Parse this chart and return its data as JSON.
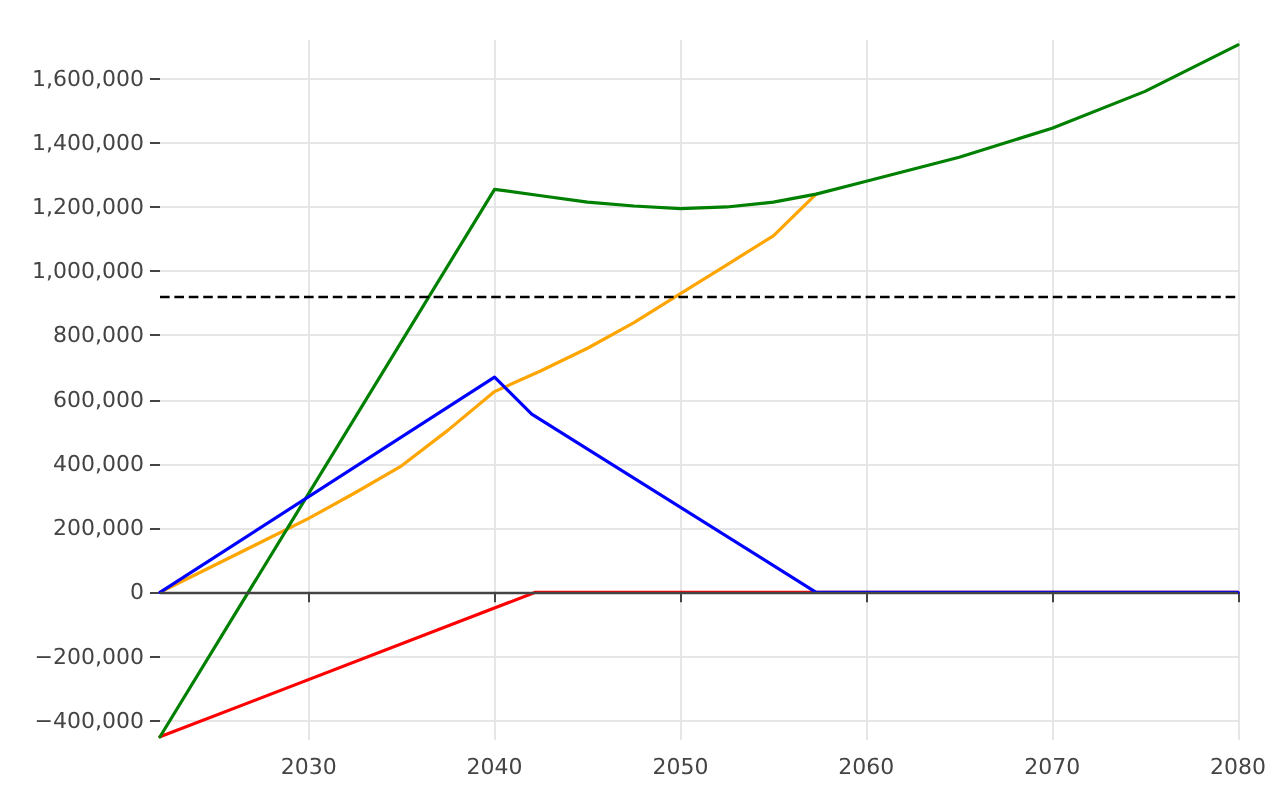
{
  "chart_data": {
    "type": "line",
    "xlim": [
      2022,
      2080
    ],
    "xticks": [
      2030,
      2040,
      2050,
      2060,
      2070,
      2080
    ],
    "ylim": [
      -460000,
      1720000
    ],
    "yticks": [
      {
        "value": -400000,
        "label": "−400,000"
      },
      {
        "value": -200000,
        "label": "−200,000"
      },
      0,
      {
        "value": 200000,
        "label": "200,000"
      },
      {
        "value": 400000,
        "label": "400,000"
      },
      {
        "value": 600000,
        "label": "600,000"
      },
      {
        "value": 800000,
        "label": "800,000"
      },
      {
        "value": 1000000,
        "label": "1,000,000"
      },
      {
        "value": 1200000,
        "label": "1,200,000"
      },
      {
        "value": 1400000,
        "label": "1,400,000"
      },
      {
        "value": 1600000,
        "label": "1,600,000"
      }
    ],
    "grid": true,
    "marker": "none",
    "line_style": "solid",
    "series": [
      {
        "color": "#ff0000",
        "x": [
          2022,
          2042.2,
          2080
        ],
        "values": [
          -450000,
          0,
          0
        ]
      },
      {
        "color": "#ffa500",
        "x": [
          2022,
          2030,
          2032.5,
          2035,
          2037.5,
          2040,
          2042.5,
          2045,
          2047.5,
          2050,
          2052.5,
          2055,
          2057.3
        ],
        "values": [
          0,
          230000,
          310000,
          394000,
          505000,
          625000,
          690000,
          760000,
          840000,
          930000,
          1020000,
          1110000,
          1240000
        ]
      },
      {
        "color": "#008000",
        "x": [
          2022,
          2040,
          2042.5,
          2045,
          2047.5,
          2050,
          2052.5,
          2055,
          2057.3,
          2060,
          2065,
          2070,
          2075,
          2080
        ],
        "values": [
          -450000,
          1255000,
          1235000,
          1215000,
          1203000,
          1195000,
          1200000,
          1215000,
          1240000,
          1280000,
          1355000,
          1445000,
          1560000,
          1705000
        ]
      },
      {
        "color": "#0000ff",
        "x": [
          2022,
          2040,
          2042,
          2057.3,
          2080
        ],
        "values": [
          0,
          670000,
          555000,
          0,
          0
        ]
      }
    ],
    "ref_lines": [
      {
        "axis": "y",
        "value": 0,
        "color": "#444444",
        "line_style": "solid"
      },
      {
        "axis": "y",
        "value": 920000,
        "color": "#000000",
        "line_style": "dashed"
      }
    ]
  }
}
